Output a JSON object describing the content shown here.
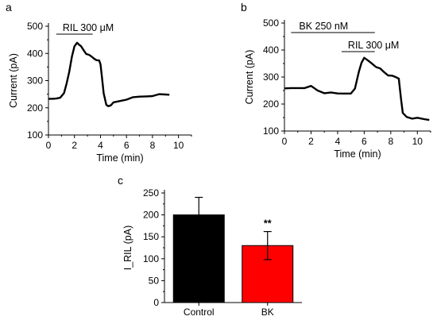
{
  "chart_data": [
    {
      "panel": "a",
      "type": "line",
      "xlabel": "Time (min)",
      "ylabel": "Current (pA)",
      "xlim": [
        0,
        11
      ],
      "ylim": [
        100,
        500
      ],
      "xticks": [
        "0",
        "2",
        "4",
        "6",
        "8",
        "10"
      ],
      "yticks": [
        "100",
        "200",
        "300",
        "400",
        "500"
      ],
      "annotations": [
        {
          "text": "RIL 300 μM",
          "x_start": 0.6,
          "x_end": 3.4
        }
      ],
      "series": [
        {
          "x": [
            0.0,
            0.3,
            0.6,
            0.9,
            1.2,
            1.4,
            1.6,
            1.8,
            2.0,
            2.2,
            2.35,
            2.5,
            2.7,
            2.9,
            3.1,
            3.3,
            3.5,
            3.7,
            3.9,
            4.0,
            4.1,
            4.25,
            4.45,
            4.6,
            4.8,
            5.0,
            5.5,
            6.0,
            6.5,
            7.0,
            7.5,
            8.0,
            8.5,
            9.0,
            9.3
          ],
          "y": [
            230,
            232,
            235,
            240,
            252,
            290,
            335,
            385,
            425,
            440,
            435,
            425,
            412,
            400,
            392,
            388,
            382,
            378,
            372,
            360,
            320,
            250,
            210,
            207,
            212,
            218,
            225,
            232,
            236,
            240,
            243,
            246,
            248,
            249,
            250
          ]
        }
      ]
    },
    {
      "panel": "b",
      "type": "line",
      "xlabel": "Time (min)",
      "ylabel": "Current (pA)",
      "xlim": [
        0,
        11
      ],
      "ylim": [
        100,
        500
      ],
      "xticks": [
        "0",
        "2",
        "4",
        "6",
        "8",
        "10"
      ],
      "yticks": [
        "100",
        "200",
        "300",
        "400",
        "500"
      ],
      "annotations": [
        {
          "text": "BK 250 nM",
          "x_start": 0.5,
          "x_end": 6.8
        },
        {
          "text": "RIL 300 μM",
          "x_start": 4.3,
          "x_end": 6.8
        }
      ],
      "series": [
        {
          "x": [
            0.0,
            0.5,
            1.0,
            1.5,
            2.0,
            2.5,
            3.0,
            3.5,
            4.0,
            4.5,
            5.0,
            5.3,
            5.6,
            5.8,
            6.0,
            6.3,
            6.6,
            6.9,
            7.2,
            7.5,
            7.8,
            8.1,
            8.4,
            8.6,
            8.75,
            8.9,
            9.2,
            9.6,
            10.0,
            10.5,
            10.9
          ],
          "y": [
            255,
            258,
            260,
            262,
            265,
            250,
            242,
            240,
            238,
            240,
            242,
            255,
            320,
            355,
            368,
            360,
            350,
            340,
            330,
            318,
            308,
            302,
            298,
            295,
            230,
            165,
            152,
            148,
            146,
            143,
            142
          ]
        }
      ]
    },
    {
      "panel": "c",
      "type": "bar",
      "ylabel": "I_RIL (pA)",
      "ylim": [
        0,
        250
      ],
      "yticks": [
        "0",
        "25",
        "50",
        "75",
        "100",
        "125",
        "150",
        "175",
        "200",
        "225",
        "250"
      ],
      "categories": [
        "Control",
        "BK"
      ],
      "values": [
        200,
        130
      ],
      "errors": [
        40,
        32
      ],
      "colors": [
        "#000000",
        "#ff0000"
      ],
      "annotations": [
        {
          "text": "**",
          "category": "BK"
        }
      ]
    }
  ]
}
